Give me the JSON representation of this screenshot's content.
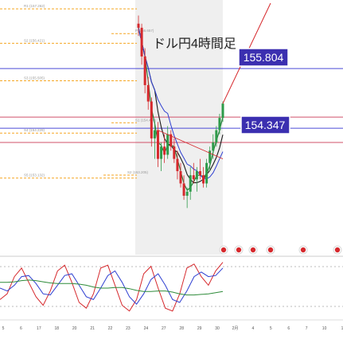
{
  "chart_data": {
    "type": "candlestick",
    "title": "ドル円4時間足",
    "price_callouts": [
      "155.804",
      "154.347"
    ],
    "levels": [
      {
        "label": "R1 (157.262)",
        "price": 157.262,
        "color": "#f5a623"
      },
      {
        "label": "P (156.657)",
        "price": 156.657,
        "color": "#f5a623"
      },
      {
        "label": "S2 (156.421)",
        "price": 156.421,
        "color": "#f5a623"
      },
      {
        "label": "S3 (155.505)",
        "price": 155.505,
        "color": "#f5a623"
      },
      {
        "label": "S1 (154.480)",
        "price": 154.48,
        "color": "#f5a623"
      },
      {
        "label": "S4 (154.229)",
        "price": 154.229,
        "color": "#f5a623"
      },
      {
        "label": "S2 (153.205)",
        "price": 153.205,
        "color": "#f5a623"
      },
      {
        "label": "S5 (153.132)",
        "price": 153.132,
        "color": "#f5a623"
      }
    ],
    "horizontal_lines": [
      {
        "price": 155.804,
        "color": "#4b4bd6"
      },
      {
        "price": 154.347,
        "color": "#4b4bd6"
      },
      {
        "price": 154.0,
        "color": "#d0506a"
      },
      {
        "price": 154.62,
        "color": "#d0506a"
      }
    ],
    "candles": [
      {
        "o": 156.9,
        "h": 157.1,
        "l": 156.6,
        "c": 156.8
      },
      {
        "o": 156.8,
        "h": 156.9,
        "l": 155.9,
        "c": 156.1
      },
      {
        "o": 156.1,
        "h": 156.3,
        "l": 155.2,
        "c": 155.4
      },
      {
        "o": 155.4,
        "h": 155.6,
        "l": 154.8,
        "c": 155.0
      },
      {
        "o": 155.0,
        "h": 155.1,
        "l": 153.9,
        "c": 154.1
      },
      {
        "o": 154.1,
        "h": 154.5,
        "l": 153.6,
        "c": 154.3
      },
      {
        "o": 154.3,
        "h": 154.5,
        "l": 153.4,
        "c": 153.6
      },
      {
        "o": 153.6,
        "h": 154.0,
        "l": 153.3,
        "c": 153.9
      },
      {
        "o": 153.9,
        "h": 154.2,
        "l": 153.5,
        "c": 153.7
      },
      {
        "o": 153.7,
        "h": 154.4,
        "l": 153.6,
        "c": 154.2
      },
      {
        "o": 154.2,
        "h": 154.3,
        "l": 153.8,
        "c": 153.9
      },
      {
        "o": 153.9,
        "h": 154.1,
        "l": 153.5,
        "c": 153.6
      },
      {
        "o": 153.6,
        "h": 153.8,
        "l": 153.1,
        "c": 153.3
      },
      {
        "o": 153.3,
        "h": 153.5,
        "l": 152.9,
        "c": 153.0
      },
      {
        "o": 153.0,
        "h": 153.2,
        "l": 152.6,
        "c": 152.7
      },
      {
        "o": 152.7,
        "h": 152.9,
        "l": 152.4,
        "c": 152.8
      },
      {
        "o": 152.8,
        "h": 153.4,
        "l": 152.6,
        "c": 153.2
      },
      {
        "o": 153.2,
        "h": 153.5,
        "l": 153.0,
        "c": 153.1
      },
      {
        "o": 153.1,
        "h": 153.4,
        "l": 152.8,
        "c": 153.3
      },
      {
        "o": 153.3,
        "h": 153.6,
        "l": 153.1,
        "c": 153.2
      },
      {
        "o": 153.2,
        "h": 153.4,
        "l": 152.9,
        "c": 153.0
      },
      {
        "o": 153.0,
        "h": 153.6,
        "l": 152.9,
        "c": 153.5
      },
      {
        "o": 153.5,
        "h": 153.9,
        "l": 153.3,
        "c": 153.8
      },
      {
        "o": 153.8,
        "h": 154.2,
        "l": 153.6,
        "c": 154.0
      },
      {
        "o": 154.0,
        "h": 154.4,
        "l": 153.9,
        "c": 154.3
      },
      {
        "o": 154.3,
        "h": 154.7,
        "l": 154.2,
        "c": 154.6
      },
      {
        "o": 154.6,
        "h": 155.0,
        "l": 154.5,
        "c": 154.95
      }
    ],
    "x_tick_labels": [
      "5",
      "6",
      "17",
      "18",
      "20",
      "21",
      "22",
      "23",
      "24",
      "27",
      "28",
      "29",
      "30",
      "2月",
      "4",
      "5",
      "6",
      "7",
      "10",
      "1"
    ],
    "price_scale": {
      "min": 151.3,
      "max": 157.4
    },
    "oscillator": {
      "type": "line",
      "series": [
        {
          "color": "#d6282c",
          "values": [
            30,
            40,
            70,
            85,
            60,
            35,
            20,
            45,
            80,
            90,
            60,
            25,
            15,
            40,
            85,
            90,
            55,
            20,
            10,
            30,
            75,
            88,
            50,
            15,
            10,
            40,
            85,
            92,
            70,
            55,
            80,
            95
          ]
        },
        {
          "color": "#2e3fd1",
          "values": [
            50,
            45,
            55,
            70,
            72,
            58,
            40,
            38,
            55,
            72,
            75,
            55,
            35,
            30,
            50,
            72,
            80,
            60,
            35,
            22,
            40,
            65,
            75,
            55,
            30,
            25,
            45,
            70,
            78,
            70,
            72,
            85
          ]
        },
        {
          "color": "#2e8b3a",
          "values": [
            60,
            60,
            61,
            63,
            64,
            63,
            61,
            59,
            58,
            58,
            58,
            57,
            55,
            52,
            50,
            50,
            51,
            51,
            49,
            46,
            44,
            44,
            45,
            45,
            43,
            40,
            38,
            38,
            39,
            40,
            42,
            44
          ]
        }
      ],
      "ylim": [
        0,
        100
      ]
    }
  },
  "event_icon_count": 6
}
